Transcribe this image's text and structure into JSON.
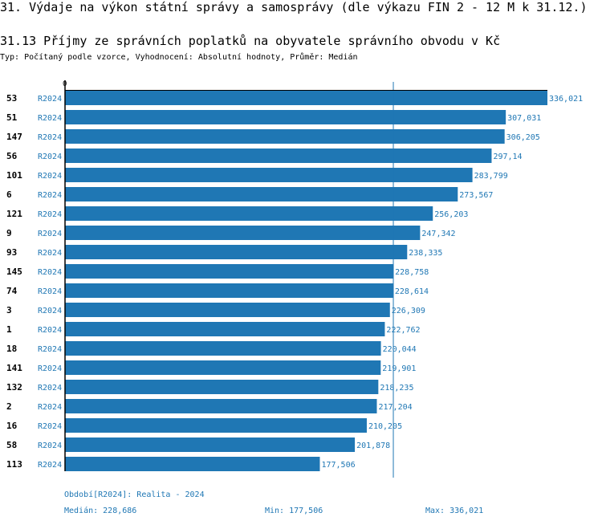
{
  "header": {
    "title": "31. Výdaje na výkon státní správy a samosprávy (dle výkazu FIN 2 - 12 M k 31.12.)",
    "subtitle": "31.13 Příjmy ze správních poplatků na obyvatele správního obvodu v Kč",
    "info": "Typ: Počítaný podle vzorce, Vyhodnocení: Absolutní hodnoty, Průměr: Medián"
  },
  "chart_data": {
    "type": "bar",
    "orientation": "horizontal",
    "xlim": [
      0,
      336.021
    ],
    "x_tick_labels": [
      "0"
    ],
    "bar_color": "#1f77b4",
    "median": 228.686,
    "rows": [
      {
        "id": "53",
        "period": "R2024",
        "value": 336.021,
        "label": "336,021"
      },
      {
        "id": "51",
        "period": "R2024",
        "value": 307.031,
        "label": "307,031"
      },
      {
        "id": "147",
        "period": "R2024",
        "value": 306.205,
        "label": "306,205"
      },
      {
        "id": "56",
        "period": "R2024",
        "value": 297.14,
        "label": "297,14"
      },
      {
        "id": "101",
        "period": "R2024",
        "value": 283.799,
        "label": "283,799"
      },
      {
        "id": "6",
        "period": "R2024",
        "value": 273.567,
        "label": "273,567"
      },
      {
        "id": "121",
        "period": "R2024",
        "value": 256.203,
        "label": "256,203"
      },
      {
        "id": "9",
        "period": "R2024",
        "value": 247.342,
        "label": "247,342"
      },
      {
        "id": "93",
        "period": "R2024",
        "value": 238.335,
        "label": "238,335"
      },
      {
        "id": "145",
        "period": "R2024",
        "value": 228.758,
        "label": "228,758"
      },
      {
        "id": "74",
        "period": "R2024",
        "value": 228.614,
        "label": "228,614"
      },
      {
        "id": "3",
        "period": "R2024",
        "value": 226.309,
        "label": "226,309"
      },
      {
        "id": "1",
        "period": "R2024",
        "value": 222.762,
        "label": "222,762"
      },
      {
        "id": "18",
        "period": "R2024",
        "value": 220.044,
        "label": "220,044"
      },
      {
        "id": "141",
        "period": "R2024",
        "value": 219.901,
        "label": "219,901"
      },
      {
        "id": "132",
        "period": "R2024",
        "value": 218.235,
        "label": "218,235"
      },
      {
        "id": "2",
        "period": "R2024",
        "value": 217.204,
        "label": "217,204"
      },
      {
        "id": "16",
        "period": "R2024",
        "value": 210.205,
        "label": "210,205"
      },
      {
        "id": "58",
        "period": "R2024",
        "value": 201.878,
        "label": "201,878"
      },
      {
        "id": "113",
        "period": "R2024",
        "value": 177.506,
        "label": "177,506"
      }
    ]
  },
  "footer": {
    "period": "Období[R2024]: Realita - 2024",
    "median": "Medián: 228,686",
    "min": "Min: 177,506",
    "max": "Max: 336,021"
  }
}
